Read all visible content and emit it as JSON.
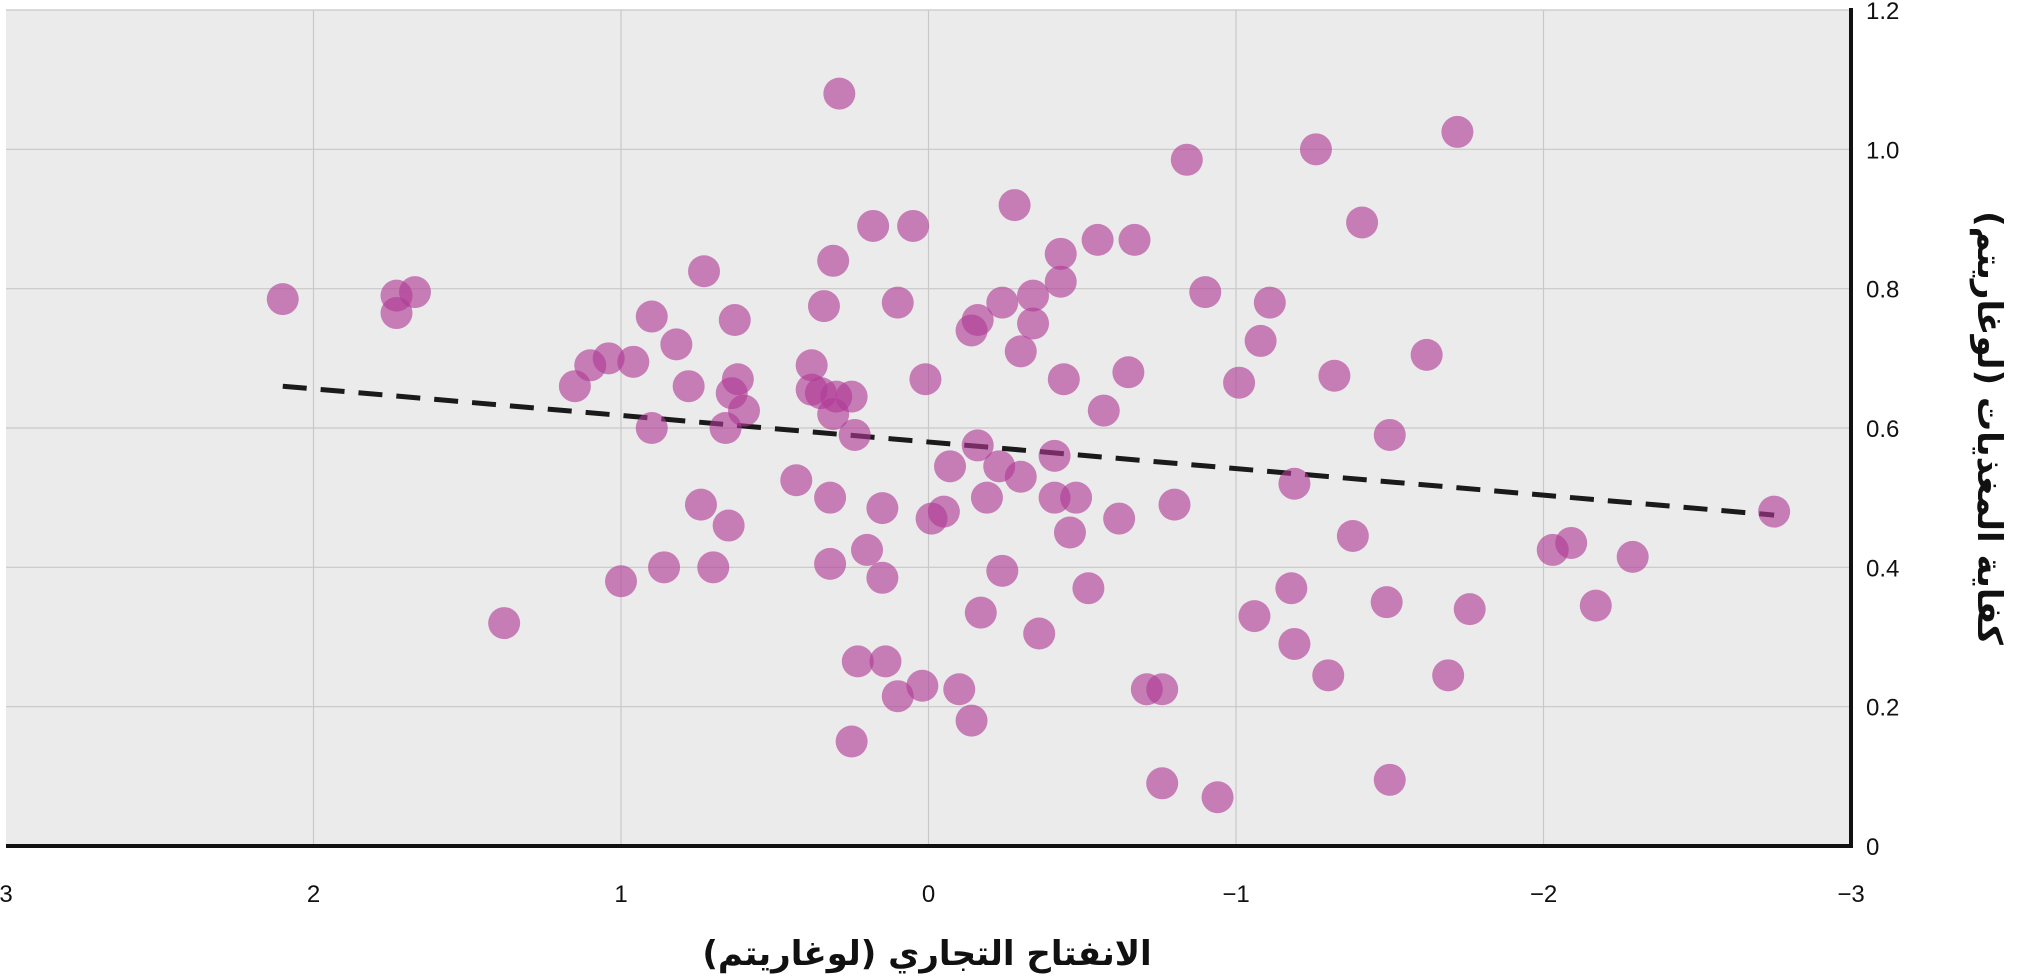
{
  "chart_data": {
    "type": "scatter",
    "xlabel": "الانفتاح التجاري (لوغاريتم)",
    "ylabel": "كفاية المغذيات (لوغاريتم)",
    "xlim": [
      3,
      -3
    ],
    "ylim": [
      0,
      1.2
    ],
    "x_reversed": true,
    "grid": true,
    "x_ticks": [
      "3",
      "2",
      "1",
      "0",
      "−1",
      "−2",
      "−3"
    ],
    "y_ticks": [
      "0",
      "0.2",
      "0.4",
      "0.6",
      "0.8",
      "1.0",
      "1.2"
    ],
    "colors": {
      "points": "#b03a96",
      "trend": "#1a1a1a",
      "background": "#ebebeb",
      "grid": "#c8c8c8",
      "axis": "#111111"
    },
    "trendline": {
      "x": [
        2.1,
        -2.75
      ],
      "y": [
        0.66,
        0.475
      ],
      "style": "dashed"
    },
    "points": [
      [
        2.1,
        0.785
      ],
      [
        1.73,
        0.765
      ],
      [
        1.73,
        0.79
      ],
      [
        1.67,
        0.795
      ],
      [
        1.38,
        0.32
      ],
      [
        1.15,
        0.66
      ],
      [
        1.1,
        0.69
      ],
      [
        1.04,
        0.7
      ],
      [
        0.96,
        0.695
      ],
      [
        0.9,
        0.6
      ],
      [
        0.9,
        0.76
      ],
      [
        1.0,
        0.38
      ],
      [
        0.86,
        0.4
      ],
      [
        0.82,
        0.72
      ],
      [
        0.78,
        0.66
      ],
      [
        0.73,
        0.825
      ],
      [
        0.74,
        0.49
      ],
      [
        0.7,
        0.4
      ],
      [
        0.66,
        0.6
      ],
      [
        0.65,
        0.46
      ],
      [
        0.64,
        0.65
      ],
      [
        0.62,
        0.67
      ],
      [
        0.6,
        0.625
      ],
      [
        0.63,
        0.755
      ],
      [
        0.43,
        0.525
      ],
      [
        0.38,
        0.69
      ],
      [
        0.38,
        0.655
      ],
      [
        0.35,
        0.65
      ],
      [
        0.34,
        0.775
      ],
      [
        0.32,
        0.5
      ],
      [
        0.32,
        0.405
      ],
      [
        0.31,
        0.84
      ],
      [
        0.3,
        0.645
      ],
      [
        0.31,
        0.62
      ],
      [
        0.29,
        1.08
      ],
      [
        0.25,
        0.645
      ],
      [
        0.24,
        0.59
      ],
      [
        0.25,
        0.15
      ],
      [
        0.23,
        0.265
      ],
      [
        0.2,
        0.425
      ],
      [
        0.18,
        0.89
      ],
      [
        0.15,
        0.485
      ],
      [
        0.15,
        0.385
      ],
      [
        0.14,
        0.265
      ],
      [
        0.1,
        0.215
      ],
      [
        0.1,
        0.78
      ],
      [
        0.05,
        0.89
      ],
      [
        0.02,
        0.23
      ],
      [
        0.01,
        0.67
      ],
      [
        -0.01,
        0.47
      ],
      [
        -0.05,
        0.48
      ],
      [
        -0.07,
        0.545
      ],
      [
        -0.1,
        0.225
      ],
      [
        -0.14,
        0.18
      ],
      [
        -0.14,
        0.74
      ],
      [
        -0.16,
        0.575
      ],
      [
        -0.16,
        0.755
      ],
      [
        -0.17,
        0.335
      ],
      [
        -0.19,
        0.5
      ],
      [
        -0.23,
        0.545
      ],
      [
        -0.24,
        0.78
      ],
      [
        -0.24,
        0.395
      ],
      [
        -0.28,
        0.92
      ],
      [
        -0.3,
        0.53
      ],
      [
        -0.3,
        0.71
      ],
      [
        -0.34,
        0.79
      ],
      [
        -0.34,
        0.75
      ],
      [
        -0.36,
        0.305
      ],
      [
        -0.41,
        0.5
      ],
      [
        -0.41,
        0.56
      ],
      [
        -0.43,
        0.85
      ],
      [
        -0.43,
        0.81
      ],
      [
        -0.44,
        0.67
      ],
      [
        -0.46,
        0.45
      ],
      [
        -0.48,
        0.5
      ],
      [
        -0.52,
        0.37
      ],
      [
        -0.55,
        0.87
      ],
      [
        -0.57,
        0.625
      ],
      [
        -0.62,
        0.47
      ],
      [
        -0.65,
        0.68
      ],
      [
        -0.67,
        0.87
      ],
      [
        -0.71,
        0.225
      ],
      [
        -0.76,
        0.225
      ],
      [
        -0.76,
        0.09
      ],
      [
        -0.8,
        0.49
      ],
      [
        -0.84,
        0.985
      ],
      [
        -0.9,
        0.795
      ],
      [
        -0.94,
        0.07
      ],
      [
        -1.01,
        0.665
      ],
      [
        -1.06,
        0.33
      ],
      [
        -1.08,
        0.725
      ],
      [
        -1.11,
        0.78
      ],
      [
        -1.18,
        0.37
      ],
      [
        -1.19,
        0.52
      ],
      [
        -1.19,
        0.29
      ],
      [
        -1.26,
        1.0
      ],
      [
        -1.3,
        0.245
      ],
      [
        -1.32,
        0.675
      ],
      [
        -1.38,
        0.445
      ],
      [
        -1.41,
        0.895
      ],
      [
        -1.49,
        0.35
      ],
      [
        -1.5,
        0.095
      ],
      [
        -1.5,
        0.59
      ],
      [
        -1.62,
        0.705
      ],
      [
        -1.69,
        0.245
      ],
      [
        -1.72,
        1.025
      ],
      [
        -1.76,
        0.34
      ],
      [
        -2.03,
        0.425
      ],
      [
        -2.09,
        0.435
      ],
      [
        -2.17,
        0.345
      ],
      [
        -2.29,
        0.415
      ],
      [
        -2.75,
        0.48
      ]
    ]
  }
}
